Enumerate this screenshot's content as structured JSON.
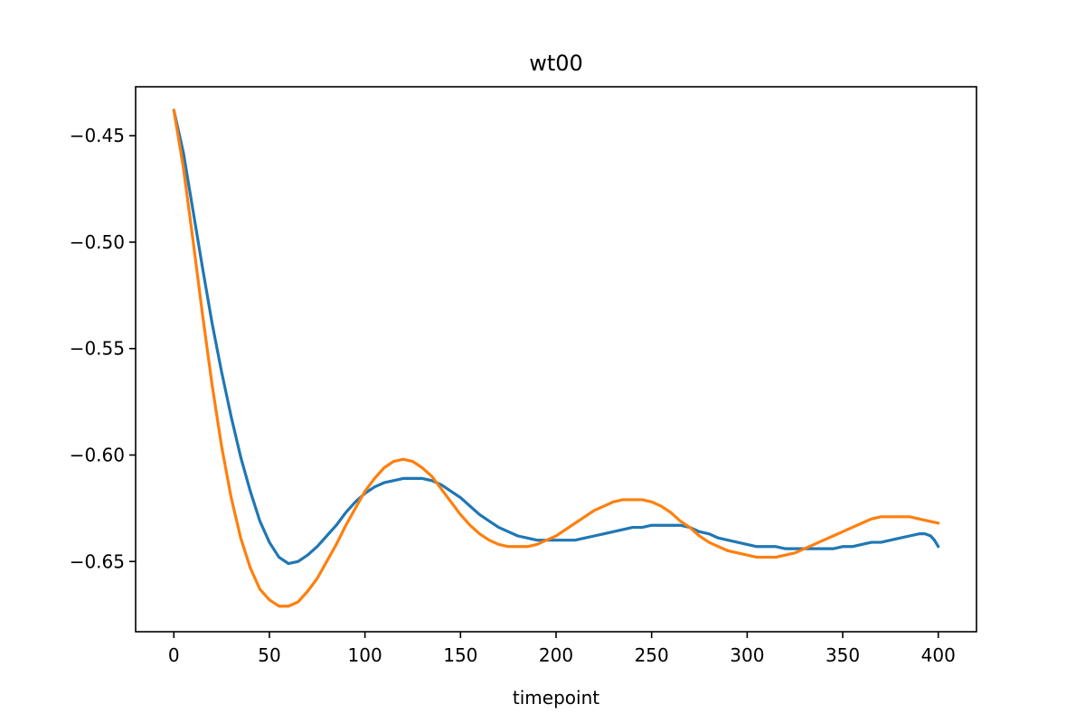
{
  "chart_data": {
    "type": "line",
    "title": "wt00",
    "xlabel": "timepoint",
    "ylabel": "",
    "xlim": [
      -20,
      420
    ],
    "ylim": [
      -0.683,
      -0.427
    ],
    "x_ticks": [
      0,
      50,
      100,
      150,
      200,
      250,
      300,
      350,
      400
    ],
    "x_tick_labels": [
      "0",
      "50",
      "100",
      "150",
      "200",
      "250",
      "300",
      "350",
      "400"
    ],
    "y_ticks": [
      -0.45,
      -0.5,
      -0.55,
      -0.6,
      -0.65
    ],
    "y_tick_labels": [
      "−0.45",
      "−0.50",
      "−0.55",
      "−0.60",
      "−0.65"
    ],
    "grid": false,
    "legend": "none",
    "series": [
      {
        "color": "#1f77b4",
        "points": [
          [
            0,
            -0.438
          ],
          [
            5,
            -0.458
          ],
          [
            10,
            -0.485
          ],
          [
            15,
            -0.512
          ],
          [
            20,
            -0.538
          ],
          [
            25,
            -0.561
          ],
          [
            30,
            -0.582
          ],
          [
            35,
            -0.601
          ],
          [
            40,
            -0.617
          ],
          [
            45,
            -0.631
          ],
          [
            50,
            -0.641
          ],
          [
            55,
            -0.648
          ],
          [
            60,
            -0.651
          ],
          [
            65,
            -0.65
          ],
          [
            70,
            -0.647
          ],
          [
            75,
            -0.643
          ],
          [
            80,
            -0.638
          ],
          [
            85,
            -0.633
          ],
          [
            90,
            -0.627
          ],
          [
            95,
            -0.622
          ],
          [
            100,
            -0.618
          ],
          [
            105,
            -0.615
          ],
          [
            110,
            -0.613
          ],
          [
            115,
            -0.612
          ],
          [
            120,
            -0.611
          ],
          [
            125,
            -0.611
          ],
          [
            130,
            -0.611
          ],
          [
            135,
            -0.612
          ],
          [
            140,
            -0.614
          ],
          [
            145,
            -0.617
          ],
          [
            150,
            -0.62
          ],
          [
            155,
            -0.624
          ],
          [
            160,
            -0.628
          ],
          [
            165,
            -0.631
          ],
          [
            170,
            -0.634
          ],
          [
            175,
            -0.636
          ],
          [
            180,
            -0.638
          ],
          [
            185,
            -0.639
          ],
          [
            190,
            -0.64
          ],
          [
            195,
            -0.64
          ],
          [
            200,
            -0.64
          ],
          [
            205,
            -0.64
          ],
          [
            210,
            -0.64
          ],
          [
            215,
            -0.639
          ],
          [
            220,
            -0.638
          ],
          [
            225,
            -0.637
          ],
          [
            230,
            -0.636
          ],
          [
            235,
            -0.635
          ],
          [
            240,
            -0.634
          ],
          [
            245,
            -0.634
          ],
          [
            250,
            -0.633
          ],
          [
            255,
            -0.633
          ],
          [
            260,
            -0.633
          ],
          [
            265,
            -0.633
          ],
          [
            270,
            -0.634
          ],
          [
            275,
            -0.636
          ],
          [
            280,
            -0.637
          ],
          [
            285,
            -0.639
          ],
          [
            290,
            -0.64
          ],
          [
            295,
            -0.641
          ],
          [
            300,
            -0.642
          ],
          [
            305,
            -0.643
          ],
          [
            310,
            -0.643
          ],
          [
            315,
            -0.643
          ],
          [
            320,
            -0.644
          ],
          [
            325,
            -0.644
          ],
          [
            330,
            -0.644
          ],
          [
            335,
            -0.644
          ],
          [
            340,
            -0.644
          ],
          [
            345,
            -0.644
          ],
          [
            350,
            -0.643
          ],
          [
            355,
            -0.643
          ],
          [
            360,
            -0.642
          ],
          [
            365,
            -0.641
          ],
          [
            370,
            -0.641
          ],
          [
            375,
            -0.64
          ],
          [
            380,
            -0.639
          ],
          [
            385,
            -0.638
          ],
          [
            390,
            -0.637
          ],
          [
            393,
            -0.637
          ],
          [
            396,
            -0.638
          ],
          [
            398,
            -0.64
          ],
          [
            400,
            -0.643
          ]
        ]
      },
      {
        "color": "#ff7f0e",
        "points": [
          [
            0,
            -0.438
          ],
          [
            5,
            -0.465
          ],
          [
            10,
            -0.499
          ],
          [
            15,
            -0.534
          ],
          [
            20,
            -0.567
          ],
          [
            25,
            -0.596
          ],
          [
            30,
            -0.62
          ],
          [
            35,
            -0.639
          ],
          [
            40,
            -0.653
          ],
          [
            45,
            -0.663
          ],
          [
            50,
            -0.668
          ],
          [
            55,
            -0.671
          ],
          [
            60,
            -0.671
          ],
          [
            65,
            -0.669
          ],
          [
            70,
            -0.664
          ],
          [
            75,
            -0.658
          ],
          [
            80,
            -0.65
          ],
          [
            85,
            -0.642
          ],
          [
            90,
            -0.633
          ],
          [
            95,
            -0.625
          ],
          [
            100,
            -0.617
          ],
          [
            105,
            -0.611
          ],
          [
            110,
            -0.606
          ],
          [
            115,
            -0.603
          ],
          [
            120,
            -0.602
          ],
          [
            125,
            -0.603
          ],
          [
            130,
            -0.606
          ],
          [
            135,
            -0.61
          ],
          [
            140,
            -0.616
          ],
          [
            145,
            -0.622
          ],
          [
            150,
            -0.628
          ],
          [
            155,
            -0.633
          ],
          [
            160,
            -0.637
          ],
          [
            165,
            -0.64
          ],
          [
            170,
            -0.642
          ],
          [
            175,
            -0.643
          ],
          [
            180,
            -0.643
          ],
          [
            185,
            -0.643
          ],
          [
            190,
            -0.642
          ],
          [
            195,
            -0.64
          ],
          [
            200,
            -0.638
          ],
          [
            205,
            -0.635
          ],
          [
            210,
            -0.632
          ],
          [
            215,
            -0.629
          ],
          [
            220,
            -0.626
          ],
          [
            225,
            -0.624
          ],
          [
            230,
            -0.622
          ],
          [
            235,
            -0.621
          ],
          [
            240,
            -0.621
          ],
          [
            245,
            -0.621
          ],
          [
            250,
            -0.622
          ],
          [
            255,
            -0.624
          ],
          [
            260,
            -0.627
          ],
          [
            265,
            -0.631
          ],
          [
            270,
            -0.634
          ],
          [
            275,
            -0.638
          ],
          [
            280,
            -0.641
          ],
          [
            285,
            -0.643
          ],
          [
            290,
            -0.645
          ],
          [
            295,
            -0.646
          ],
          [
            300,
            -0.647
          ],
          [
            305,
            -0.648
          ],
          [
            310,
            -0.648
          ],
          [
            315,
            -0.648
          ],
          [
            320,
            -0.647
          ],
          [
            325,
            -0.646
          ],
          [
            330,
            -0.644
          ],
          [
            335,
            -0.642
          ],
          [
            340,
            -0.64
          ],
          [
            345,
            -0.638
          ],
          [
            350,
            -0.636
          ],
          [
            355,
            -0.634
          ],
          [
            360,
            -0.632
          ],
          [
            365,
            -0.63
          ],
          [
            370,
            -0.629
          ],
          [
            375,
            -0.629
          ],
          [
            380,
            -0.629
          ],
          [
            385,
            -0.629
          ],
          [
            390,
            -0.63
          ],
          [
            395,
            -0.631
          ],
          [
            400,
            -0.632
          ]
        ]
      }
    ]
  }
}
